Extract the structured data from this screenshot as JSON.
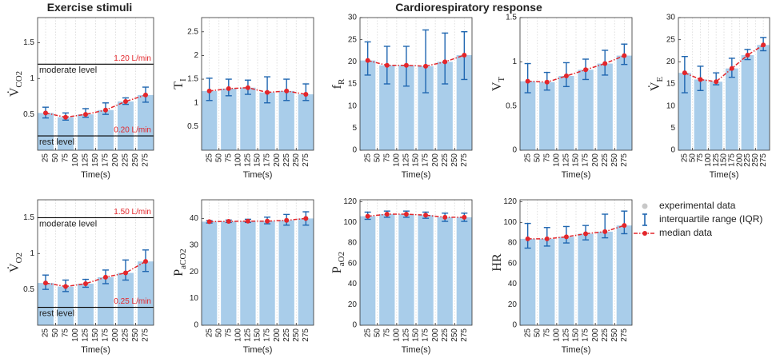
{
  "headers": [
    "Exercise stimuli",
    "Cardiorespiratory response"
  ],
  "legend": {
    "entries": [
      "experimental data",
      "interquartile range (IQR)",
      "median data"
    ],
    "colors": [
      "#c8c8c8",
      "#1f66b0",
      "#e3262b"
    ]
  },
  "chart_data": [
    {
      "type": "bar",
      "ylabel": "V̇",
      "ylabel_sub": "CO2",
      "xlabel": "Time(s)",
      "x": [
        25,
        75,
        125,
        175,
        225,
        275
      ],
      "values": [
        0.52,
        0.46,
        0.5,
        0.56,
        0.68,
        0.77
      ],
      "q1": [
        0.45,
        0.42,
        0.46,
        0.5,
        0.64,
        0.67
      ],
      "q3": [
        0.6,
        0.52,
        0.58,
        0.66,
        0.73,
        0.88
      ],
      "xlim": [
        5,
        295
      ],
      "xticks": [
        25,
        50,
        75,
        100,
        125,
        150,
        175,
        200,
        225,
        250,
        275
      ],
      "ylim": [
        0,
        1.85
      ],
      "yticks": [
        0.5,
        1,
        1.5
      ],
      "reference_lines": [
        {
          "value": 1.2,
          "label": "1.20 L/min",
          "name": "moderate level"
        },
        {
          "value": 0.2,
          "label": "0.20 L/min",
          "name": "rest level"
        }
      ],
      "color": "#a9cdea",
      "errorbar_color": "#1f66b0",
      "median_color": "#e3262b",
      "grid": true
    },
    {
      "type": "bar",
      "ylabel": "T",
      "ylabel_sub": "I",
      "xlabel": "Time(s)",
      "x": [
        25,
        75,
        125,
        175,
        225,
        275
      ],
      "values": [
        1.25,
        1.3,
        1.32,
        1.22,
        1.25,
        1.18
      ],
      "q1": [
        1.05,
        1.15,
        1.18,
        1.0,
        1.05,
        1.05
      ],
      "q3": [
        1.52,
        1.5,
        1.48,
        1.55,
        1.5,
        1.4
      ],
      "xlim": [
        5,
        295
      ],
      "xticks": [
        25,
        50,
        75,
        100,
        125,
        150,
        175,
        200,
        225,
        250,
        275
      ],
      "ylim": [
        0,
        2.8
      ],
      "yticks": [
        0.5,
        1,
        1.5,
        2,
        2.5
      ],
      "color": "#a9cdea",
      "errorbar_color": "#1f66b0",
      "median_color": "#e3262b",
      "grid": true
    },
    {
      "type": "bar",
      "ylabel": "f",
      "ylabel_sub": "R",
      "xlabel": "Time(s)",
      "x": [
        25,
        75,
        125,
        175,
        225,
        275
      ],
      "values": [
        20.3,
        19.2,
        19.2,
        19.0,
        20.0,
        21.5
      ],
      "q1": [
        17,
        15,
        14.5,
        13,
        15,
        16
      ],
      "q3": [
        24.5,
        23.5,
        23.5,
        27.2,
        26.5,
        26.8
      ],
      "xlim": [
        5,
        295
      ],
      "xticks": [
        25,
        50,
        75,
        100,
        125,
        150,
        175,
        200,
        225,
        250,
        275
      ],
      "ylim": [
        0,
        30
      ],
      "yticks": [
        0,
        5,
        10,
        15,
        20,
        25,
        30
      ],
      "color": "#a9cdea",
      "errorbar_color": "#1f66b0",
      "median_color": "#e3262b",
      "grid": true
    },
    {
      "type": "bar",
      "ylabel": "V",
      "ylabel_sub": "T",
      "xlabel": "Time(s)",
      "x": [
        25,
        75,
        125,
        175,
        225,
        275
      ],
      "values": [
        0.78,
        0.77,
        0.84,
        0.91,
        0.98,
        1.07
      ],
      "q1": [
        0.65,
        0.68,
        0.72,
        0.8,
        0.85,
        0.97
      ],
      "q3": [
        0.98,
        0.88,
        0.99,
        1.03,
        1.13,
        1.2
      ],
      "xlim": [
        5,
        295
      ],
      "xticks": [
        25,
        50,
        75,
        100,
        125,
        150,
        175,
        200,
        225,
        250,
        275
      ],
      "ylim": [
        0,
        1.5
      ],
      "yticks": [
        0,
        0.5,
        1,
        1.5
      ],
      "color": "#a9cdea",
      "errorbar_color": "#1f66b0",
      "median_color": "#e3262b",
      "grid": true
    },
    {
      "type": "bar",
      "ylabel": "V̇",
      "ylabel_sub": "E",
      "xlabel": "Time(s)",
      "x": [
        25,
        75,
        125,
        175,
        225,
        275
      ],
      "values": [
        17.5,
        16.0,
        15.5,
        18.5,
        21.5,
        23.8
      ],
      "q1": [
        13,
        13.5,
        14.8,
        16.5,
        20.5,
        22.5
      ],
      "q3": [
        21.2,
        19,
        17.5,
        20.8,
        22.8,
        25.5
      ],
      "xlim": [
        5,
        295
      ],
      "xticks": [
        25,
        50,
        75,
        100,
        125,
        150,
        175,
        200,
        225,
        250,
        275
      ],
      "ylim": [
        0,
        30
      ],
      "yticks": [
        0,
        5,
        10,
        15,
        20,
        25,
        30
      ],
      "color": "#a9cdea",
      "errorbar_color": "#1f66b0",
      "median_color": "#e3262b",
      "grid": true
    },
    {
      "type": "bar",
      "ylabel": "V̇",
      "ylabel_sub": "O2",
      "xlabel": "Time(s)",
      "x": [
        25,
        75,
        125,
        175,
        225,
        275
      ],
      "values": [
        0.59,
        0.54,
        0.58,
        0.67,
        0.73,
        0.89
      ],
      "q1": [
        0.5,
        0.47,
        0.53,
        0.58,
        0.63,
        0.75
      ],
      "q3": [
        0.7,
        0.63,
        0.64,
        0.77,
        0.91,
        1.05
      ],
      "xlim": [
        5,
        295
      ],
      "xticks": [
        25,
        50,
        75,
        100,
        125,
        150,
        175,
        200,
        225,
        250,
        275
      ],
      "ylim": [
        0,
        1.75
      ],
      "yticks": [
        0.5,
        1,
        1.5
      ],
      "reference_lines": [
        {
          "value": 1.5,
          "label": "1.50 L/min",
          "name": "moderate level"
        },
        {
          "value": 0.25,
          "label": "0.25 L/min",
          "name": "rest level"
        }
      ],
      "color": "#a9cdea",
      "errorbar_color": "#1f66b0",
      "median_color": "#e3262b",
      "grid": true
    },
    {
      "type": "bar",
      "ylabel": "P",
      "ylabel_sub": "aCO2",
      "xlabel": "Time(s)",
      "x": [
        25,
        75,
        125,
        175,
        225,
        275
      ],
      "values": [
        38.8,
        38.9,
        39.0,
        39.0,
        39.3,
        40.0
      ],
      "q1": [
        38.3,
        38.5,
        38.5,
        38.0,
        37.5,
        37.5
      ],
      "q3": [
        39.2,
        39.4,
        39.7,
        40.5,
        41.5,
        42.5
      ],
      "xlim": [
        5,
        295
      ],
      "xticks": [
        25,
        50,
        75,
        100,
        125,
        150,
        175,
        200,
        225,
        250,
        275
      ],
      "ylim": [
        0,
        47
      ],
      "yticks": [
        0,
        10,
        20,
        30,
        40
      ],
      "color": "#a9cdea",
      "errorbar_color": "#1f66b0",
      "median_color": "#e3262b",
      "grid": true
    },
    {
      "type": "bar",
      "ylabel": "P",
      "ylabel_sub": "aO2",
      "xlabel": "Time(s)",
      "x": [
        25,
        75,
        125,
        175,
        225,
        275
      ],
      "values": [
        106,
        108,
        108,
        107,
        105,
        105
      ],
      "q1": [
        103,
        105,
        105,
        104,
        101,
        101
      ],
      "q3": [
        110,
        111,
        111,
        110,
        109,
        109
      ],
      "xlim": [
        5,
        295
      ],
      "xticks": [
        25,
        50,
        75,
        100,
        125,
        150,
        175,
        200,
        225,
        250,
        275
      ],
      "ylim": [
        0,
        122
      ],
      "yticks": [
        0,
        20,
        40,
        60,
        80,
        100,
        120
      ],
      "color": "#a9cdea",
      "errorbar_color": "#1f66b0",
      "median_color": "#e3262b",
      "grid": true
    },
    {
      "type": "bar",
      "ylabel": "HR",
      "xlabel": "Time(s)",
      "x": [
        25,
        75,
        125,
        175,
        225,
        275
      ],
      "values": [
        84,
        84,
        86,
        89,
        91,
        97
      ],
      "q1": [
        75,
        77,
        80,
        83,
        85,
        89
      ],
      "q3": [
        99,
        95,
        96,
        97,
        108,
        111
      ],
      "xlim": [
        5,
        295
      ],
      "xticks": [
        25,
        50,
        75,
        100,
        125,
        150,
        175,
        200,
        225,
        250,
        275
      ],
      "ylim": [
        0,
        122
      ],
      "yticks": [
        0,
        20,
        40,
        60,
        80,
        100,
        120
      ],
      "color": "#a9cdea",
      "errorbar_color": "#1f66b0",
      "median_color": "#e3262b",
      "grid": true
    }
  ]
}
